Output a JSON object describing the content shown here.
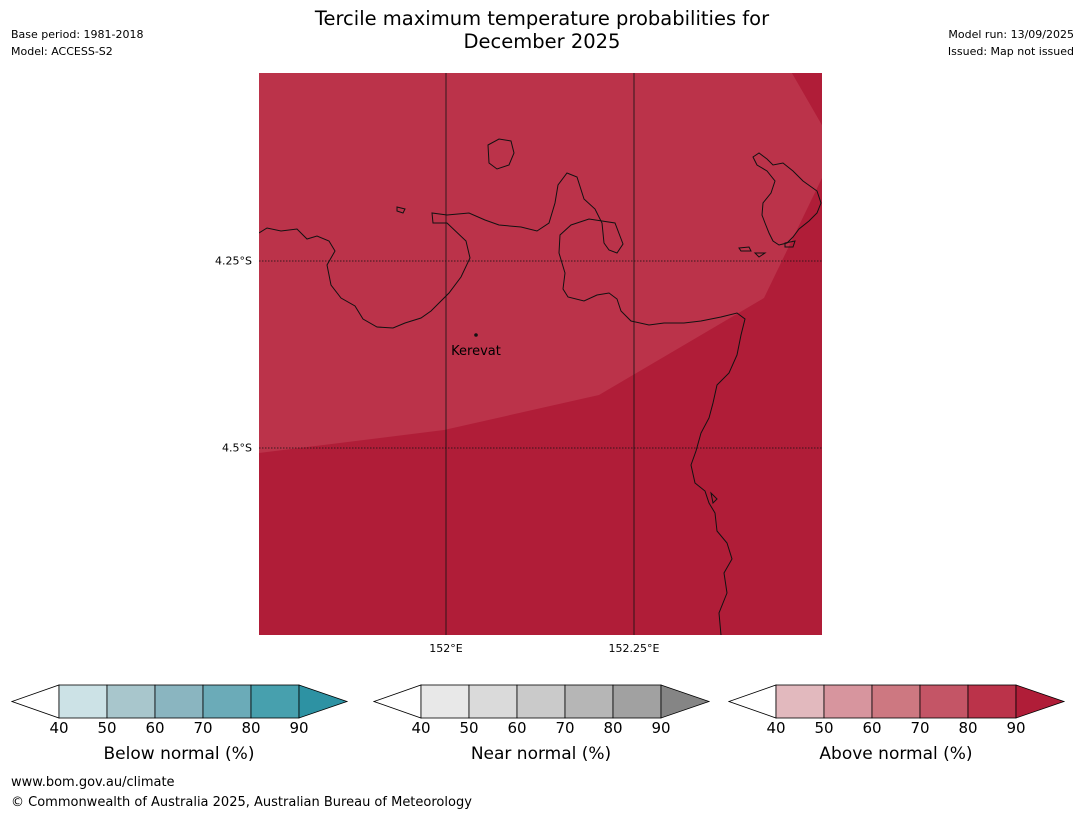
{
  "header": {
    "title_line1": "Tercile maximum temperature probabilities for",
    "title_line2": "December 2025",
    "base_period": "Base period: 1981-2018",
    "model": "Model: ACCESS-S2",
    "model_run": "Model run: 13/09/2025",
    "issued": "Issued: Map not issued"
  },
  "map": {
    "place_label": "Kerevat",
    "lat_labels": [
      "4.25°S",
      "4.5°S"
    ],
    "lon_labels": [
      "152°E",
      "152.25°E"
    ],
    "fill_colors": {
      "above_70_80": "#bb334a",
      "above_80_90": "#b01d38"
    }
  },
  "colorbars": [
    {
      "label": "Below normal (%)",
      "ticks": [
        "40",
        "50",
        "60",
        "70",
        "80",
        "90"
      ],
      "colors": [
        "#ffffff",
        "#cce2e6",
        "#a8c6cc",
        "#8ab5c0",
        "#6babb8",
        "#47a0ae",
        "#2d92a3"
      ]
    },
    {
      "label": "Near normal (%)",
      "ticks": [
        "40",
        "50",
        "60",
        "70",
        "80",
        "90"
      ],
      "colors": [
        "#ffffff",
        "#e8e8e8",
        "#dadada",
        "#cacaca",
        "#b6b6b6",
        "#a1a1a1",
        "#858585"
      ]
    },
    {
      "label": "Above normal (%)",
      "ticks": [
        "40",
        "50",
        "60",
        "70",
        "80",
        "90"
      ],
      "colors": [
        "#ffffff",
        "#e2b9be",
        "#d7959e",
        "#cd7881",
        "#c45566",
        "#bb334a",
        "#b01d38"
      ]
    }
  ],
  "footer": {
    "url": "www.bom.gov.au/climate",
    "copyright": "© Commonwealth of Australia 2025, Australian Bureau of Meteorology"
  }
}
